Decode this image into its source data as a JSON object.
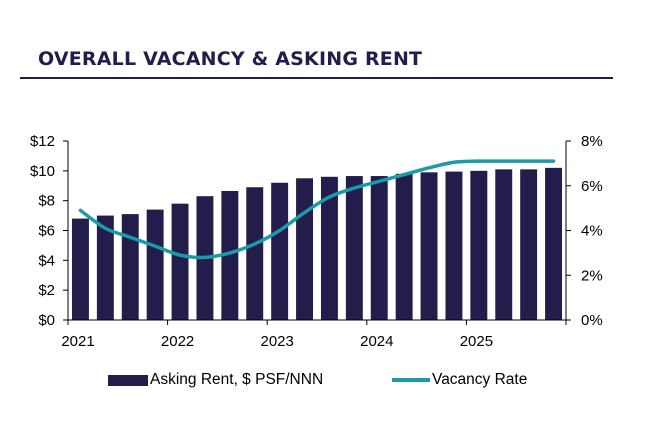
{
  "title": "OVERALL VACANCY & ASKING RENT",
  "colors": {
    "bar": "#221d4b",
    "line": "#1b9aaa",
    "title": "#221d4b"
  },
  "chart_data": {
    "type": "bar+line",
    "title": "OVERALL VACANCY & ASKING RENT",
    "x_tick_labels": [
      "2021",
      "2022",
      "2023",
      "2024",
      "2025"
    ],
    "quarters": [
      "2021 Q1",
      "2021 Q2",
      "2021 Q3",
      "2021 Q4",
      "2022 Q1",
      "2022 Q2",
      "2022 Q3",
      "2022 Q4",
      "2023 Q1",
      "2023 Q2",
      "2023 Q3",
      "2023 Q4",
      "2024 Q1",
      "2024 Q2",
      "2024 Q3",
      "2024 Q4",
      "2025 Q1",
      "2025 Q2",
      "2025 Q3",
      "2025 Q4"
    ],
    "series": [
      {
        "name": "Asking Rent, $ PSF/NNN",
        "type": "bar",
        "axis": "left",
        "values": [
          6.8,
          7.0,
          7.1,
          7.4,
          7.8,
          8.3,
          8.65,
          8.9,
          9.2,
          9.5,
          9.6,
          9.65,
          9.65,
          9.8,
          9.9,
          9.95,
          10.0,
          10.1,
          10.1,
          10.2
        ]
      },
      {
        "name": "Vacancy Rate",
        "type": "line",
        "axis": "right",
        "values": [
          4.9,
          4.1,
          3.7,
          3.3,
          2.9,
          2.8,
          3.0,
          3.4,
          4.0,
          4.8,
          5.5,
          5.9,
          6.2,
          6.5,
          6.8,
          7.05,
          7.1,
          7.1,
          7.1,
          7.1
        ]
      }
    ],
    "y_left": {
      "min": 0,
      "max": 12,
      "step": 2,
      "tick_labels": [
        "$0",
        "$2",
        "$4",
        "$6",
        "$8",
        "$10",
        "$12"
      ]
    },
    "y_right": {
      "min": 0,
      "max": 8,
      "step": 2,
      "tick_labels": [
        "0%",
        "2%",
        "4%",
        "6%",
        "8%"
      ]
    },
    "legend": {
      "position": "bottom"
    }
  }
}
